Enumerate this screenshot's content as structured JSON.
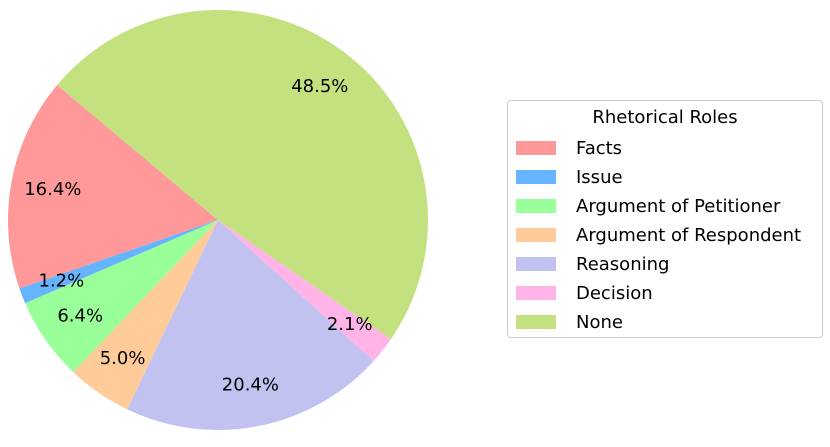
{
  "chart_data": {
    "type": "pie",
    "legend": {
      "title": "Rhetorical Roles",
      "placement": "right"
    },
    "slices": [
      {
        "label": "Facts",
        "value": 16.4,
        "pct_label": "16.4%",
        "color": "#ff9999"
      },
      {
        "label": "Issue",
        "value": 1.2,
        "pct_label": "1.2%",
        "color": "#66b3ff"
      },
      {
        "label": "Argument of Petitioner",
        "value": 6.4,
        "pct_label": "6.4%",
        "color": "#99ff99"
      },
      {
        "label": "Argument of Respondent",
        "value": 5.0,
        "pct_label": "5.0%",
        "color": "#ffcc99"
      },
      {
        "label": "Reasoning",
        "value": 20.4,
        "pct_label": "20.4%",
        "color": "#c2c2f0"
      },
      {
        "label": "Decision",
        "value": 2.1,
        "pct_label": "2.1%",
        "color": "#ffb3e6"
      },
      {
        "label": "None",
        "value": 48.5,
        "pct_label": "48.5%",
        "color": "#c4e17f"
      }
    ]
  }
}
